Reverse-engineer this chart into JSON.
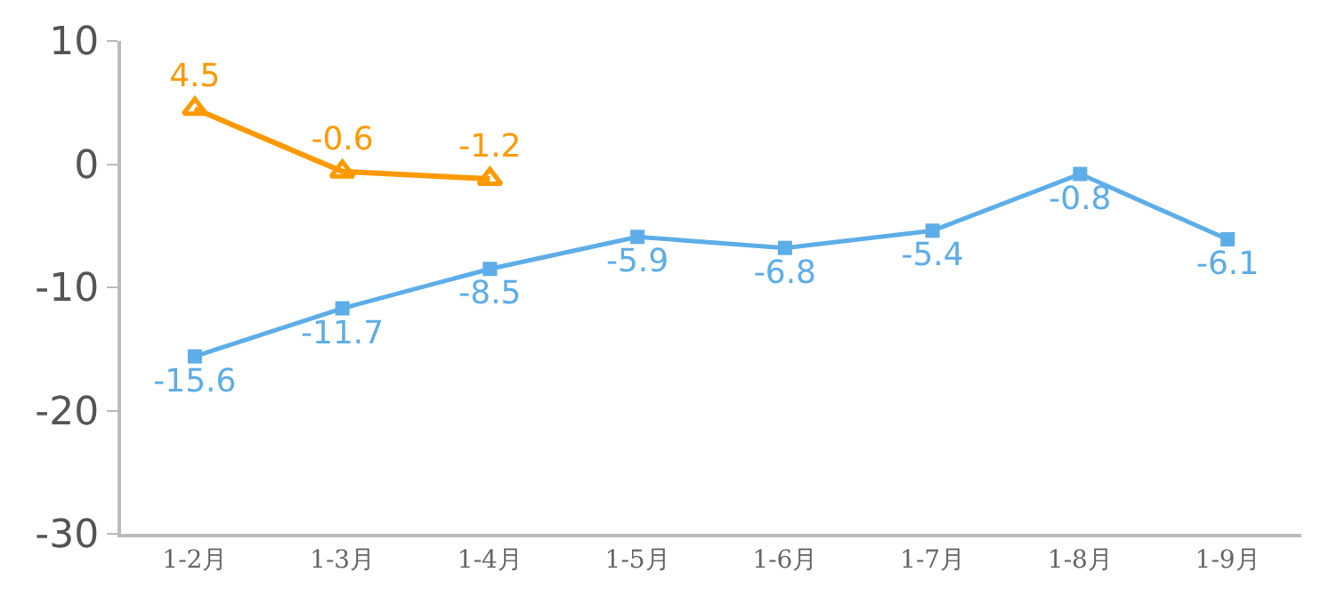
{
  "chart_data": {
    "type": "line",
    "categories": [
      "1-2月",
      "1-3月",
      "1-4月",
      "1-5月",
      "1-6月",
      "1-7月",
      "1-8月",
      "1-9月"
    ],
    "series": [
      {
        "color": "#5dade8",
        "marker": "square",
        "values": [
          -15.6,
          -11.7,
          -8.5,
          -5.9,
          -6.8,
          -5.4,
          -0.8,
          -6.1
        ]
      },
      {
        "color": "#ff9900",
        "marker": "triangle",
        "values": [
          4.5,
          -0.6,
          -1.2,
          null,
          null,
          null,
          null,
          null
        ]
      }
    ],
    "ylim": [
      -30,
      10
    ],
    "yticks": [
      -30,
      -20,
      -10,
      0,
      10
    ],
    "data_labels": true
  }
}
